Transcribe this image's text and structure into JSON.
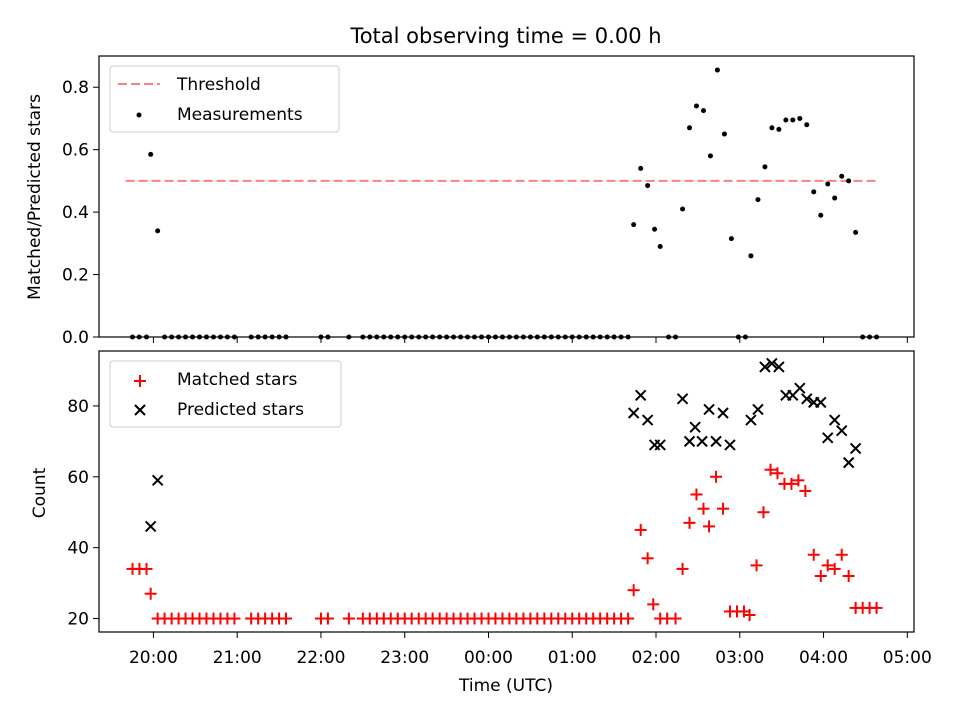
{
  "title": "Total observing time = 0.00 h",
  "chart_data": [
    {
      "type": "scatter",
      "ylabel": "Matched/Predicted stars",
      "xlim_hours": [
        19.35,
        29.08
      ],
      "ylim": [
        0,
        0.9
      ],
      "yticks": [
        "0.0",
        "0.2",
        "0.4",
        "0.6",
        "0.8"
      ],
      "legend_position": "top-left",
      "threshold": {
        "name": "Threshold",
        "value": 0.5,
        "x_range": [
          19.667,
          28.667
        ],
        "color": "#ff7f7f"
      },
      "series": [
        {
          "name": "Measurements",
          "color": "#000000",
          "marker": "dot",
          "points": [
            [
              19.75,
              0
            ],
            [
              19.83,
              0
            ],
            [
              19.917,
              0
            ],
            [
              19.967,
              0.585
            ],
            [
              20.05,
              0.34
            ],
            [
              20.133,
              0
            ],
            [
              20.217,
              0
            ],
            [
              20.3,
              0
            ],
            [
              20.383,
              0
            ],
            [
              20.467,
              0
            ],
            [
              20.55,
              0
            ],
            [
              20.633,
              0
            ],
            [
              20.717,
              0
            ],
            [
              20.8,
              0
            ],
            [
              20.883,
              0
            ],
            [
              20.967,
              0
            ],
            [
              21.167,
              0
            ],
            [
              21.25,
              0
            ],
            [
              21.333,
              0
            ],
            [
              21.417,
              0
            ],
            [
              21.5,
              0
            ],
            [
              21.583,
              0
            ],
            [
              22.0,
              0
            ],
            [
              22.083,
              0
            ],
            [
              22.333,
              0
            ],
            [
              22.5,
              0
            ],
            [
              22.583,
              0
            ],
            [
              22.667,
              0
            ],
            [
              22.75,
              0
            ],
            [
              22.833,
              0
            ],
            [
              22.917,
              0
            ],
            [
              23.0,
              0
            ],
            [
              23.083,
              0
            ],
            [
              23.167,
              0
            ],
            [
              23.25,
              0
            ],
            [
              23.333,
              0
            ],
            [
              23.417,
              0
            ],
            [
              23.5,
              0
            ],
            [
              23.583,
              0
            ],
            [
              23.667,
              0
            ],
            [
              23.75,
              0
            ],
            [
              23.833,
              0
            ],
            [
              23.917,
              0
            ],
            [
              24.0,
              0
            ],
            [
              24.083,
              0
            ],
            [
              24.167,
              0
            ],
            [
              24.25,
              0
            ],
            [
              24.333,
              0
            ],
            [
              24.417,
              0
            ],
            [
              24.5,
              0
            ],
            [
              24.583,
              0
            ],
            [
              24.667,
              0
            ],
            [
              24.75,
              0
            ],
            [
              24.833,
              0
            ],
            [
              24.917,
              0
            ],
            [
              25.0,
              0
            ],
            [
              25.083,
              0
            ],
            [
              25.167,
              0
            ],
            [
              25.25,
              0
            ],
            [
              25.333,
              0
            ],
            [
              25.417,
              0
            ],
            [
              25.5,
              0
            ],
            [
              25.583,
              0
            ],
            [
              25.667,
              0
            ],
            [
              25.733,
              0.36
            ],
            [
              25.817,
              0.54
            ],
            [
              25.9,
              0.485
            ],
            [
              25.983,
              0.345
            ],
            [
              26.05,
              0.29
            ],
            [
              26.15,
              0
            ],
            [
              26.233,
              0
            ],
            [
              26.317,
              0.41
            ],
            [
              26.4,
              0.67
            ],
            [
              26.483,
              0.74
            ],
            [
              26.567,
              0.725
            ],
            [
              26.65,
              0.58
            ],
            [
              26.733,
              0.855
            ],
            [
              26.817,
              0.65
            ],
            [
              26.9,
              0.315
            ],
            [
              26.983,
              0
            ],
            [
              27.067,
              0
            ],
            [
              27.133,
              0.26
            ],
            [
              27.217,
              0.44
            ],
            [
              27.3,
              0.545
            ],
            [
              27.383,
              0.67
            ],
            [
              27.467,
              0.665
            ],
            [
              27.55,
              0.695
            ],
            [
              27.633,
              0.695
            ],
            [
              27.717,
              0.7
            ],
            [
              27.8,
              0.68
            ],
            [
              27.883,
              0.465
            ],
            [
              27.967,
              0.39
            ],
            [
              28.05,
              0.49
            ],
            [
              28.133,
              0.445
            ],
            [
              28.217,
              0.515
            ],
            [
              28.3,
              0.5
            ],
            [
              28.383,
              0.335
            ],
            [
              28.467,
              0
            ],
            [
              28.55,
              0
            ],
            [
              28.633,
              0
            ]
          ]
        }
      ]
    },
    {
      "type": "scatter",
      "ylabel": "Count",
      "xlabel": "Time (UTC)",
      "xlim_hours": [
        19.35,
        29.08
      ],
      "ylim": [
        16.2,
        95.5
      ],
      "yticks": [
        20,
        40,
        60,
        80
      ],
      "xticks": [
        "20:00",
        "21:00",
        "22:00",
        "23:00",
        "00:00",
        "01:00",
        "02:00",
        "03:00",
        "04:00",
        "05:00"
      ],
      "xticks_hours": [
        20,
        21,
        22,
        23,
        24,
        25,
        26,
        27,
        28,
        29
      ],
      "legend_position": "top-left",
      "series": [
        {
          "name": "Matched stars",
          "color": "#ff0000",
          "marker": "plus",
          "points": [
            [
              19.75,
              34
            ],
            [
              19.833,
              34
            ],
            [
              19.917,
              34
            ],
            [
              19.967,
              27
            ],
            [
              20.05,
              20
            ],
            [
              20.133,
              20
            ],
            [
              20.217,
              20
            ],
            [
              20.3,
              20
            ],
            [
              20.383,
              20
            ],
            [
              20.467,
              20
            ],
            [
              20.55,
              20
            ],
            [
              20.633,
              20
            ],
            [
              20.717,
              20
            ],
            [
              20.8,
              20
            ],
            [
              20.883,
              20
            ],
            [
              20.967,
              20
            ],
            [
              21.167,
              20
            ],
            [
              21.25,
              20
            ],
            [
              21.333,
              20
            ],
            [
              21.417,
              20
            ],
            [
              21.5,
              20
            ],
            [
              21.583,
              20
            ],
            [
              22.0,
              20
            ],
            [
              22.083,
              20
            ],
            [
              22.333,
              20
            ],
            [
              22.5,
              20
            ],
            [
              22.583,
              20
            ],
            [
              22.667,
              20
            ],
            [
              22.75,
              20
            ],
            [
              22.833,
              20
            ],
            [
              22.917,
              20
            ],
            [
              23.0,
              20
            ],
            [
              23.083,
              20
            ],
            [
              23.167,
              20
            ],
            [
              23.25,
              20
            ],
            [
              23.333,
              20
            ],
            [
              23.417,
              20
            ],
            [
              23.5,
              20
            ],
            [
              23.583,
              20
            ],
            [
              23.667,
              20
            ],
            [
              23.75,
              20
            ],
            [
              23.833,
              20
            ],
            [
              23.917,
              20
            ],
            [
              24.0,
              20
            ],
            [
              24.083,
              20
            ],
            [
              24.167,
              20
            ],
            [
              24.25,
              20
            ],
            [
              24.333,
              20
            ],
            [
              24.417,
              20
            ],
            [
              24.5,
              20
            ],
            [
              24.583,
              20
            ],
            [
              24.667,
              20
            ],
            [
              24.75,
              20
            ],
            [
              24.833,
              20
            ],
            [
              24.917,
              20
            ],
            [
              25.0,
              20
            ],
            [
              25.083,
              20
            ],
            [
              25.167,
              20
            ],
            [
              25.25,
              20
            ],
            [
              25.333,
              20
            ],
            [
              25.417,
              20
            ],
            [
              25.5,
              20
            ],
            [
              25.583,
              20
            ],
            [
              25.667,
              20
            ],
            [
              25.733,
              28
            ],
            [
              25.817,
              45
            ],
            [
              25.9,
              37
            ],
            [
              25.967,
              24
            ],
            [
              26.05,
              20
            ],
            [
              26.133,
              20
            ],
            [
              26.233,
              20
            ],
            [
              26.317,
              34
            ],
            [
              26.4,
              47
            ],
            [
              26.483,
              55
            ],
            [
              26.567,
              51
            ],
            [
              26.633,
              46
            ],
            [
              26.717,
              60
            ],
            [
              26.8,
              51
            ],
            [
              26.883,
              22
            ],
            [
              26.967,
              22
            ],
            [
              27.05,
              22
            ],
            [
              27.117,
              21
            ],
            [
              27.2,
              35
            ],
            [
              27.283,
              50
            ],
            [
              27.367,
              62
            ],
            [
              27.45,
              61
            ],
            [
              27.533,
              58
            ],
            [
              27.617,
              58
            ],
            [
              27.7,
              59
            ],
            [
              27.783,
              56
            ],
            [
              27.883,
              38
            ],
            [
              27.967,
              32
            ],
            [
              28.05,
              35
            ],
            [
              28.133,
              34
            ],
            [
              28.217,
              38
            ],
            [
              28.3,
              32
            ],
            [
              28.383,
              23
            ],
            [
              28.467,
              23
            ],
            [
              28.55,
              23
            ],
            [
              28.633,
              23
            ]
          ]
        },
        {
          "name": "Predicted stars",
          "color": "#000000",
          "marker": "x",
          "points": [
            [
              19.967,
              46
            ],
            [
              20.05,
              59
            ],
            [
              25.733,
              78
            ],
            [
              25.817,
              83
            ],
            [
              25.9,
              76
            ],
            [
              25.983,
              69
            ],
            [
              26.05,
              69
            ],
            [
              26.317,
              82
            ],
            [
              26.4,
              70
            ],
            [
              26.467,
              74
            ],
            [
              26.55,
              70
            ],
            [
              26.633,
              79
            ],
            [
              26.717,
              70
            ],
            [
              26.8,
              78
            ],
            [
              26.883,
              69
            ],
            [
              27.133,
              76
            ],
            [
              27.217,
              79
            ],
            [
              27.3,
              91
            ],
            [
              27.383,
              92
            ],
            [
              27.467,
              91
            ],
            [
              27.55,
              83
            ],
            [
              27.633,
              83
            ],
            [
              27.717,
              85
            ],
            [
              27.8,
              82
            ],
            [
              27.883,
              81
            ],
            [
              27.967,
              81
            ],
            [
              28.05,
              71
            ],
            [
              28.133,
              76
            ],
            [
              28.217,
              73
            ],
            [
              28.3,
              64
            ],
            [
              28.383,
              68
            ]
          ]
        }
      ]
    }
  ]
}
